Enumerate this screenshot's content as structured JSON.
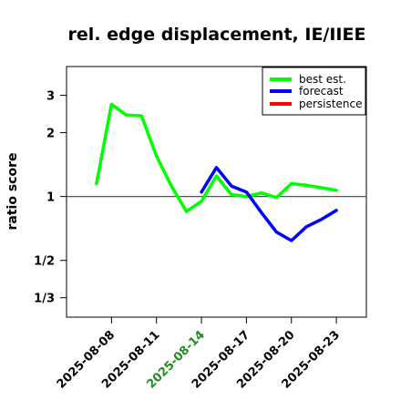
{
  "chart_data": {
    "type": "line",
    "title": "rel. edge displacement, IE/IIEE",
    "xlabel": "",
    "ylabel": "ratio score",
    "y_scale": "log",
    "ylim": [
      0.27,
      4.1
    ],
    "y_ticks": [
      {
        "value": 0.3333,
        "label": "1/3"
      },
      {
        "value": 0.5,
        "label": "1/2"
      },
      {
        "value": 1,
        "label": "1"
      },
      {
        "value": 2,
        "label": "2"
      },
      {
        "value": 3,
        "label": "3"
      }
    ],
    "x_ticks": [
      {
        "date": "2025-08-08",
        "label": "2025-08-08",
        "color": "#000000"
      },
      {
        "date": "2025-08-11",
        "label": "2025-08-11",
        "color": "#000000"
      },
      {
        "date": "2025-08-14",
        "label": "2025-08-14",
        "color": "#228B22"
      },
      {
        "date": "2025-08-17",
        "label": "2025-08-17",
        "color": "#000000"
      },
      {
        "date": "2025-08-20",
        "label": "2025-08-20",
        "color": "#000000"
      },
      {
        "date": "2025-08-23",
        "label": "2025-08-23",
        "color": "#000000"
      }
    ],
    "xlim": [
      "2025-08-05",
      "2025-08-25"
    ],
    "reference_line": 1,
    "grid": false,
    "legend_position": "top-right",
    "series": [
      {
        "name": "best est.",
        "color": "#00ff00",
        "points": [
          {
            "x": "2025-08-07",
            "y": 1.15
          },
          {
            "x": "2025-08-08",
            "y": 2.72
          },
          {
            "x": "2025-08-09",
            "y": 2.42
          },
          {
            "x": "2025-08-10",
            "y": 2.4
          },
          {
            "x": "2025-08-11",
            "y": 1.55
          },
          {
            "x": "2025-08-12",
            "y": 1.12
          },
          {
            "x": "2025-08-13",
            "y": 0.85
          },
          {
            "x": "2025-08-14",
            "y": 0.95
          },
          {
            "x": "2025-08-15",
            "y": 1.25
          },
          {
            "x": "2025-08-16",
            "y": 1.02
          },
          {
            "x": "2025-08-17",
            "y": 1.0
          },
          {
            "x": "2025-08-18",
            "y": 1.04
          },
          {
            "x": "2025-08-19",
            "y": 0.99
          },
          {
            "x": "2025-08-20",
            "y": 1.15
          },
          {
            "x": "2025-08-21",
            "y": 1.13
          },
          {
            "x": "2025-08-22",
            "y": 1.1
          },
          {
            "x": "2025-08-23",
            "y": 1.07
          }
        ]
      },
      {
        "name": "forecast",
        "color": "#0000ff",
        "points": [
          {
            "x": "2025-08-14",
            "y": 1.05
          },
          {
            "x": "2025-08-15",
            "y": 1.37
          },
          {
            "x": "2025-08-16",
            "y": 1.12
          },
          {
            "x": "2025-08-17",
            "y": 1.05
          },
          {
            "x": "2025-08-18",
            "y": 0.84
          },
          {
            "x": "2025-08-19",
            "y": 0.68
          },
          {
            "x": "2025-08-20",
            "y": 0.62
          },
          {
            "x": "2025-08-21",
            "y": 0.72
          },
          {
            "x": "2025-08-22",
            "y": 0.78
          },
          {
            "x": "2025-08-23",
            "y": 0.86
          }
        ]
      },
      {
        "name": "persistence",
        "color": "#ff0000",
        "points": []
      }
    ]
  }
}
